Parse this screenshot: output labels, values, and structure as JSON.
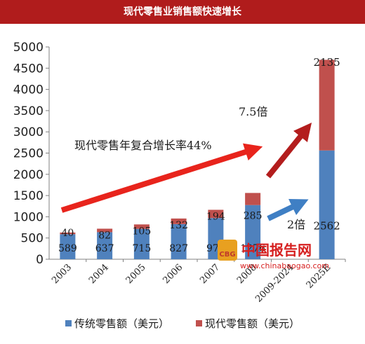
{
  "header": {
    "title": "现代零售业销售额快速增长"
  },
  "colors": {
    "title_bg": "#b01c1c",
    "traditional": "#4f81bd",
    "modern": "#c0504d",
    "arrow_red": "#e8241c",
    "arrow_dark_red": "#b31d1d",
    "arrow_blue": "#3f7fc4"
  },
  "annotations": {
    "growth_rate": "现代零售年复合增长率44%",
    "ratio_modern": "7.5倍",
    "ratio_traditional": "2倍"
  },
  "watermark": {
    "logo_text": "CBG",
    "name": "中国报告网",
    "url": "www.chinabaogao.com"
  },
  "chart_data": {
    "type": "bar",
    "stacked": true,
    "categories": [
      "2003",
      "2004",
      "2005",
      "2006",
      "2007",
      "2008",
      "2009-2024",
      "2025E"
    ],
    "series": [
      {
        "name": "传统零售额（美元）",
        "color": "#4f81bd",
        "values": [
          589,
          637,
          715,
          827,
          970,
          1276,
          null,
          2562
        ],
        "labels": [
          "589",
          "637",
          "715",
          "827",
          "970",
          "1276",
          "",
          "2562"
        ]
      },
      {
        "name": "现代零售额（美元）",
        "color": "#c0504d",
        "values": [
          40,
          82,
          105,
          132,
          194,
          285,
          null,
          2135
        ],
        "labels": [
          "40",
          "82",
          "105",
          "132",
          "194",
          "285",
          "",
          "2135"
        ]
      }
    ],
    "ylim": [
      0,
      5000
    ],
    "yticks": [
      "0",
      "500",
      "1000",
      "1500",
      "2000",
      "2500",
      "3000",
      "3500",
      "4000",
      "4500",
      "5000"
    ],
    "ytick_values": [
      0,
      500,
      1000,
      1500,
      2000,
      2500,
      3000,
      3500,
      4000,
      4500,
      5000
    ],
    "grid": false,
    "legend_position": "bottom"
  }
}
